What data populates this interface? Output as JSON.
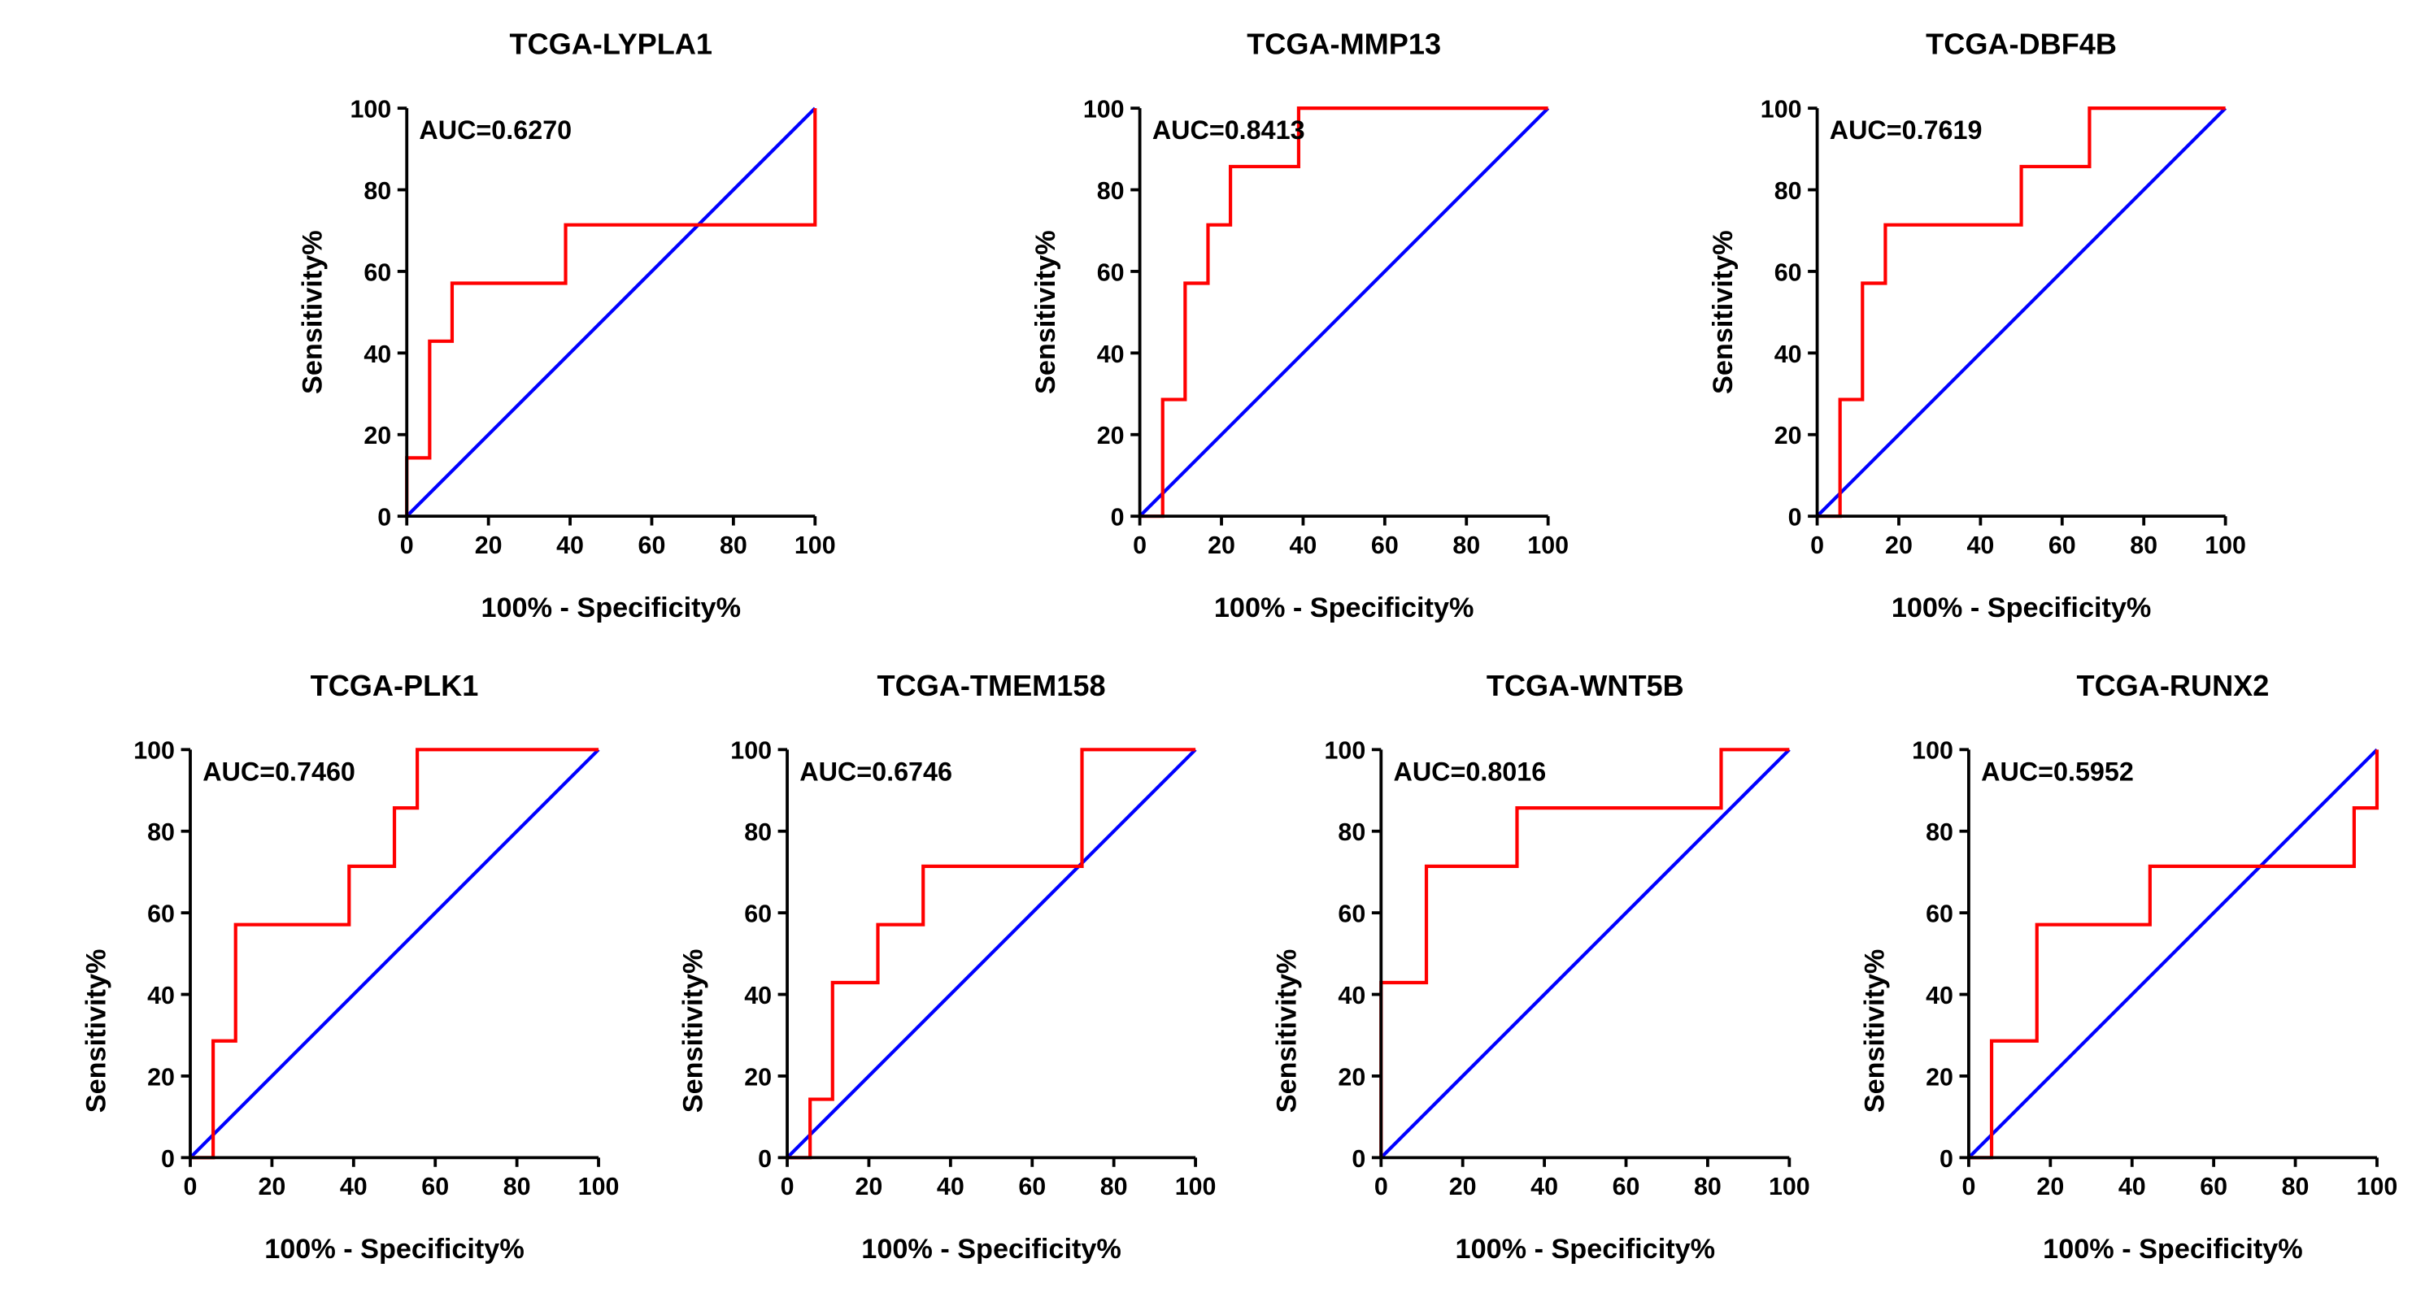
{
  "chart_data": [
    {
      "type": "line",
      "title": "TCGA-LYPLA1",
      "auc_label": "AUC=0.6270",
      "xlabel": "100% - Specificity%",
      "ylabel": "Sensitivity%",
      "xlim": [
        0,
        100
      ],
      "ylim": [
        0,
        100
      ],
      "xticks": [
        0,
        20,
        40,
        60,
        80,
        100
      ],
      "yticks": [
        0,
        20,
        40,
        60,
        80,
        100
      ],
      "series": [
        {
          "name": "ROC",
          "color": "#ff0000",
          "x": [
            0,
            0,
            5.6,
            5.6,
            11.1,
            11.1,
            38.9,
            38.9,
            100,
            100
          ],
          "y": [
            0,
            14.3,
            14.3,
            42.9,
            42.9,
            57.1,
            57.1,
            71.4,
            71.4,
            100
          ]
        },
        {
          "name": "Reference",
          "color": "#0000ff",
          "x": [
            0,
            100
          ],
          "y": [
            0,
            100
          ]
        }
      ]
    },
    {
      "type": "line",
      "title": "TCGA-MMP13",
      "auc_label": "AUC=0.8413",
      "xlabel": "100% - Specificity%",
      "ylabel": "Sensitivity%",
      "xlim": [
        0,
        100
      ],
      "ylim": [
        0,
        100
      ],
      "xticks": [
        0,
        20,
        40,
        60,
        80,
        100
      ],
      "yticks": [
        0,
        20,
        40,
        60,
        80,
        100
      ],
      "series": [
        {
          "name": "ROC",
          "color": "#ff0000",
          "x": [
            0,
            5.6,
            5.6,
            11.1,
            11.1,
            16.7,
            16.7,
            22.2,
            22.2,
            38.9,
            38.9,
            100
          ],
          "y": [
            0,
            0,
            28.6,
            28.6,
            57.1,
            57.1,
            71.4,
            71.4,
            85.7,
            85.7,
            100,
            100
          ]
        },
        {
          "name": "Reference",
          "color": "#0000ff",
          "x": [
            0,
            100
          ],
          "y": [
            0,
            100
          ]
        }
      ]
    },
    {
      "type": "line",
      "title": "TCGA-DBF4B",
      "auc_label": "AUC=0.7619",
      "xlabel": "100% - Specificity%",
      "ylabel": "Sensitivity%",
      "xlim": [
        0,
        100
      ],
      "ylim": [
        0,
        100
      ],
      "xticks": [
        0,
        20,
        40,
        60,
        80,
        100
      ],
      "yticks": [
        0,
        20,
        40,
        60,
        80,
        100
      ],
      "series": [
        {
          "name": "ROC",
          "color": "#ff0000",
          "x": [
            0,
            5.6,
            5.6,
            11.1,
            11.1,
            16.7,
            16.7,
            50,
            50,
            66.7,
            66.7,
            100
          ],
          "y": [
            0,
            0,
            28.6,
            28.6,
            57.1,
            57.1,
            71.4,
            71.4,
            85.7,
            85.7,
            100,
            100
          ]
        },
        {
          "name": "Reference",
          "color": "#0000ff",
          "x": [
            0,
            100
          ],
          "y": [
            0,
            100
          ]
        }
      ]
    },
    {
      "type": "line",
      "title": "TCGA-PLK1",
      "auc_label": "AUC=0.7460",
      "xlabel": "100% - Specificity%",
      "ylabel": "Sensitivity%",
      "xlim": [
        0,
        100
      ],
      "ylim": [
        0,
        100
      ],
      "xticks": [
        0,
        20,
        40,
        60,
        80,
        100
      ],
      "yticks": [
        0,
        20,
        40,
        60,
        80,
        100
      ],
      "series": [
        {
          "name": "ROC",
          "color": "#ff0000",
          "x": [
            0,
            5.6,
            5.6,
            11.1,
            11.1,
            38.9,
            38.9,
            50,
            50,
            55.6,
            55.6,
            100
          ],
          "y": [
            0,
            0,
            28.6,
            28.6,
            57.1,
            57.1,
            71.4,
            71.4,
            85.7,
            85.7,
            100,
            100
          ]
        },
        {
          "name": "Reference",
          "color": "#0000ff",
          "x": [
            0,
            100
          ],
          "y": [
            0,
            100
          ]
        }
      ]
    },
    {
      "type": "line",
      "title": "TCGA-TMEM158",
      "auc_label": "AUC=0.6746",
      "xlabel": "100% - Specificity%",
      "ylabel": "Sensitivity%",
      "xlim": [
        0,
        100
      ],
      "ylim": [
        0,
        100
      ],
      "xticks": [
        0,
        20,
        40,
        60,
        80,
        100
      ],
      "yticks": [
        0,
        20,
        40,
        60,
        80,
        100
      ],
      "series": [
        {
          "name": "ROC",
          "color": "#ff0000",
          "x": [
            0,
            5.6,
            5.6,
            11.1,
            11.1,
            22.2,
            22.2,
            33.3,
            33.3,
            72.2,
            72.2,
            100
          ],
          "y": [
            0,
            0,
            14.3,
            14.3,
            42.9,
            42.9,
            57.1,
            57.1,
            71.4,
            71.4,
            100,
            100
          ]
        },
        {
          "name": "Reference",
          "color": "#0000ff",
          "x": [
            0,
            100
          ],
          "y": [
            0,
            100
          ]
        }
      ]
    },
    {
      "type": "line",
      "title": "TCGA-WNT5B",
      "auc_label": "AUC=0.8016",
      "xlabel": "100% - Specificity%",
      "ylabel": "Sensitivity%",
      "xlim": [
        0,
        100
      ],
      "ylim": [
        0,
        100
      ],
      "xticks": [
        0,
        20,
        40,
        60,
        80,
        100
      ],
      "yticks": [
        0,
        20,
        40,
        60,
        80,
        100
      ],
      "series": [
        {
          "name": "ROC",
          "color": "#ff0000",
          "x": [
            0,
            0,
            11.1,
            11.1,
            33.3,
            33.3,
            83.3,
            83.3,
            100
          ],
          "y": [
            0,
            42.9,
            42.9,
            71.4,
            71.4,
            85.7,
            85.7,
            100,
            100
          ]
        },
        {
          "name": "Reference",
          "color": "#0000ff",
          "x": [
            0,
            100
          ],
          "y": [
            0,
            100
          ]
        }
      ]
    },
    {
      "type": "line",
      "title": "TCGA-RUNX2",
      "auc_label": "AUC=0.5952",
      "xlabel": "100% - Specificity%",
      "ylabel": "Sensitivity%",
      "xlim": [
        0,
        100
      ],
      "ylim": [
        0,
        100
      ],
      "xticks": [
        0,
        20,
        40,
        60,
        80,
        100
      ],
      "yticks": [
        0,
        20,
        40,
        60,
        80,
        100
      ],
      "series": [
        {
          "name": "ROC",
          "color": "#ff0000",
          "x": [
            0,
            5.6,
            5.6,
            16.7,
            16.7,
            44.4,
            44.4,
            94.4,
            94.4,
            100,
            100
          ],
          "y": [
            0,
            0,
            28.6,
            28.6,
            57.1,
            57.1,
            71.4,
            71.4,
            85.7,
            85.7,
            100
          ]
        },
        {
          "name": "Reference",
          "color": "#0000ff",
          "x": [
            0,
            100
          ],
          "y": [
            0,
            100
          ]
        }
      ]
    }
  ]
}
